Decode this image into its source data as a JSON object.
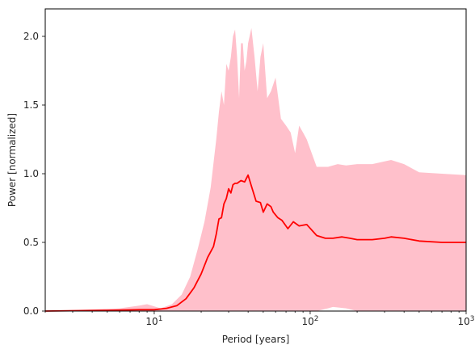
{
  "chart_data": {
    "type": "line",
    "title": "",
    "xlabel": "Period [years]",
    "ylabel": "Power [normalized]",
    "xscale": "log",
    "xlim": [
      2,
      1000
    ],
    "ylim": [
      0,
      2.2
    ],
    "grid": false,
    "legend": "none",
    "colors": {
      "line": "#ff0000",
      "band": "#ffc0cb",
      "axes": "#000000"
    },
    "x_ticks": [
      {
        "value": 10,
        "base": "10",
        "exp": "1"
      },
      {
        "value": 100,
        "base": "10",
        "exp": "2"
      },
      {
        "value": 1000,
        "base": "10",
        "exp": "3"
      }
    ],
    "y_ticks": [
      {
        "value": 0.0,
        "label": "0.0"
      },
      {
        "value": 0.5,
        "label": "0.5"
      },
      {
        "value": 1.0,
        "label": "1.0"
      },
      {
        "value": 1.5,
        "label": "1.5"
      },
      {
        "value": 2.0,
        "label": "2.0"
      }
    ],
    "series": [
      {
        "role": "line",
        "x": [
          2,
          5,
          8,
          10,
          12,
          14,
          16,
          18,
          20,
          22,
          24,
          25,
          26,
          27,
          28,
          29,
          30,
          31,
          32,
          33,
          34,
          36,
          38,
          40,
          42,
          45,
          48,
          50,
          53,
          56,
          58,
          62,
          66,
          72,
          78,
          85,
          95,
          110,
          125,
          140,
          160,
          180,
          200,
          250,
          300,
          330,
          400,
          500,
          700,
          1000
        ],
        "y": [
          0.0,
          0.005,
          0.01,
          0.01,
          0.02,
          0.04,
          0.09,
          0.17,
          0.27,
          0.39,
          0.47,
          0.56,
          0.67,
          0.68,
          0.78,
          0.82,
          0.89,
          0.86,
          0.92,
          0.93,
          0.93,
          0.95,
          0.94,
          0.99,
          0.91,
          0.8,
          0.79,
          0.72,
          0.78,
          0.76,
          0.72,
          0.68,
          0.66,
          0.6,
          0.65,
          0.62,
          0.63,
          0.55,
          0.53,
          0.53,
          0.54,
          0.53,
          0.52,
          0.52,
          0.53,
          0.54,
          0.53,
          0.51,
          0.5,
          0.5
        ]
      },
      {
        "role": "band-upper",
        "x": [
          2,
          6,
          8,
          9,
          11,
          13,
          15,
          17,
          19,
          21,
          23,
          25,
          26,
          27,
          28,
          29,
          30,
          31,
          32,
          33,
          34,
          35,
          36,
          37,
          38,
          39,
          40,
          42,
          44,
          46,
          48,
          50,
          53,
          56,
          60,
          65,
          70,
          75,
          80,
          85,
          90,
          95,
          110,
          130,
          150,
          170,
          200,
          250,
          300,
          330,
          400,
          500,
          700,
          1000
        ],
        "y": [
          0.0,
          0.02,
          0.04,
          0.05,
          0.02,
          0.05,
          0.12,
          0.25,
          0.45,
          0.65,
          0.9,
          1.25,
          1.45,
          1.6,
          1.5,
          1.8,
          1.75,
          1.85,
          2.0,
          2.05,
          1.85,
          1.55,
          1.95,
          1.95,
          1.75,
          1.82,
          1.95,
          2.06,
          1.85,
          1.6,
          1.85,
          1.95,
          1.55,
          1.6,
          1.7,
          1.4,
          1.35,
          1.3,
          1.15,
          1.35,
          1.3,
          1.25,
          1.05,
          1.05,
          1.07,
          1.06,
          1.07,
          1.07,
          1.09,
          1.1,
          1.07,
          1.01,
          1.0,
          0.99
        ]
      },
      {
        "role": "band-lower",
        "x": [
          2,
          50,
          80,
          100,
          110,
          130,
          140,
          170,
          200,
          1000
        ],
        "y": [
          0.0,
          0.0,
          0.0,
          0.0,
          0.0,
          0.02,
          0.03,
          0.02,
          0.0,
          0.0
        ]
      }
    ]
  }
}
